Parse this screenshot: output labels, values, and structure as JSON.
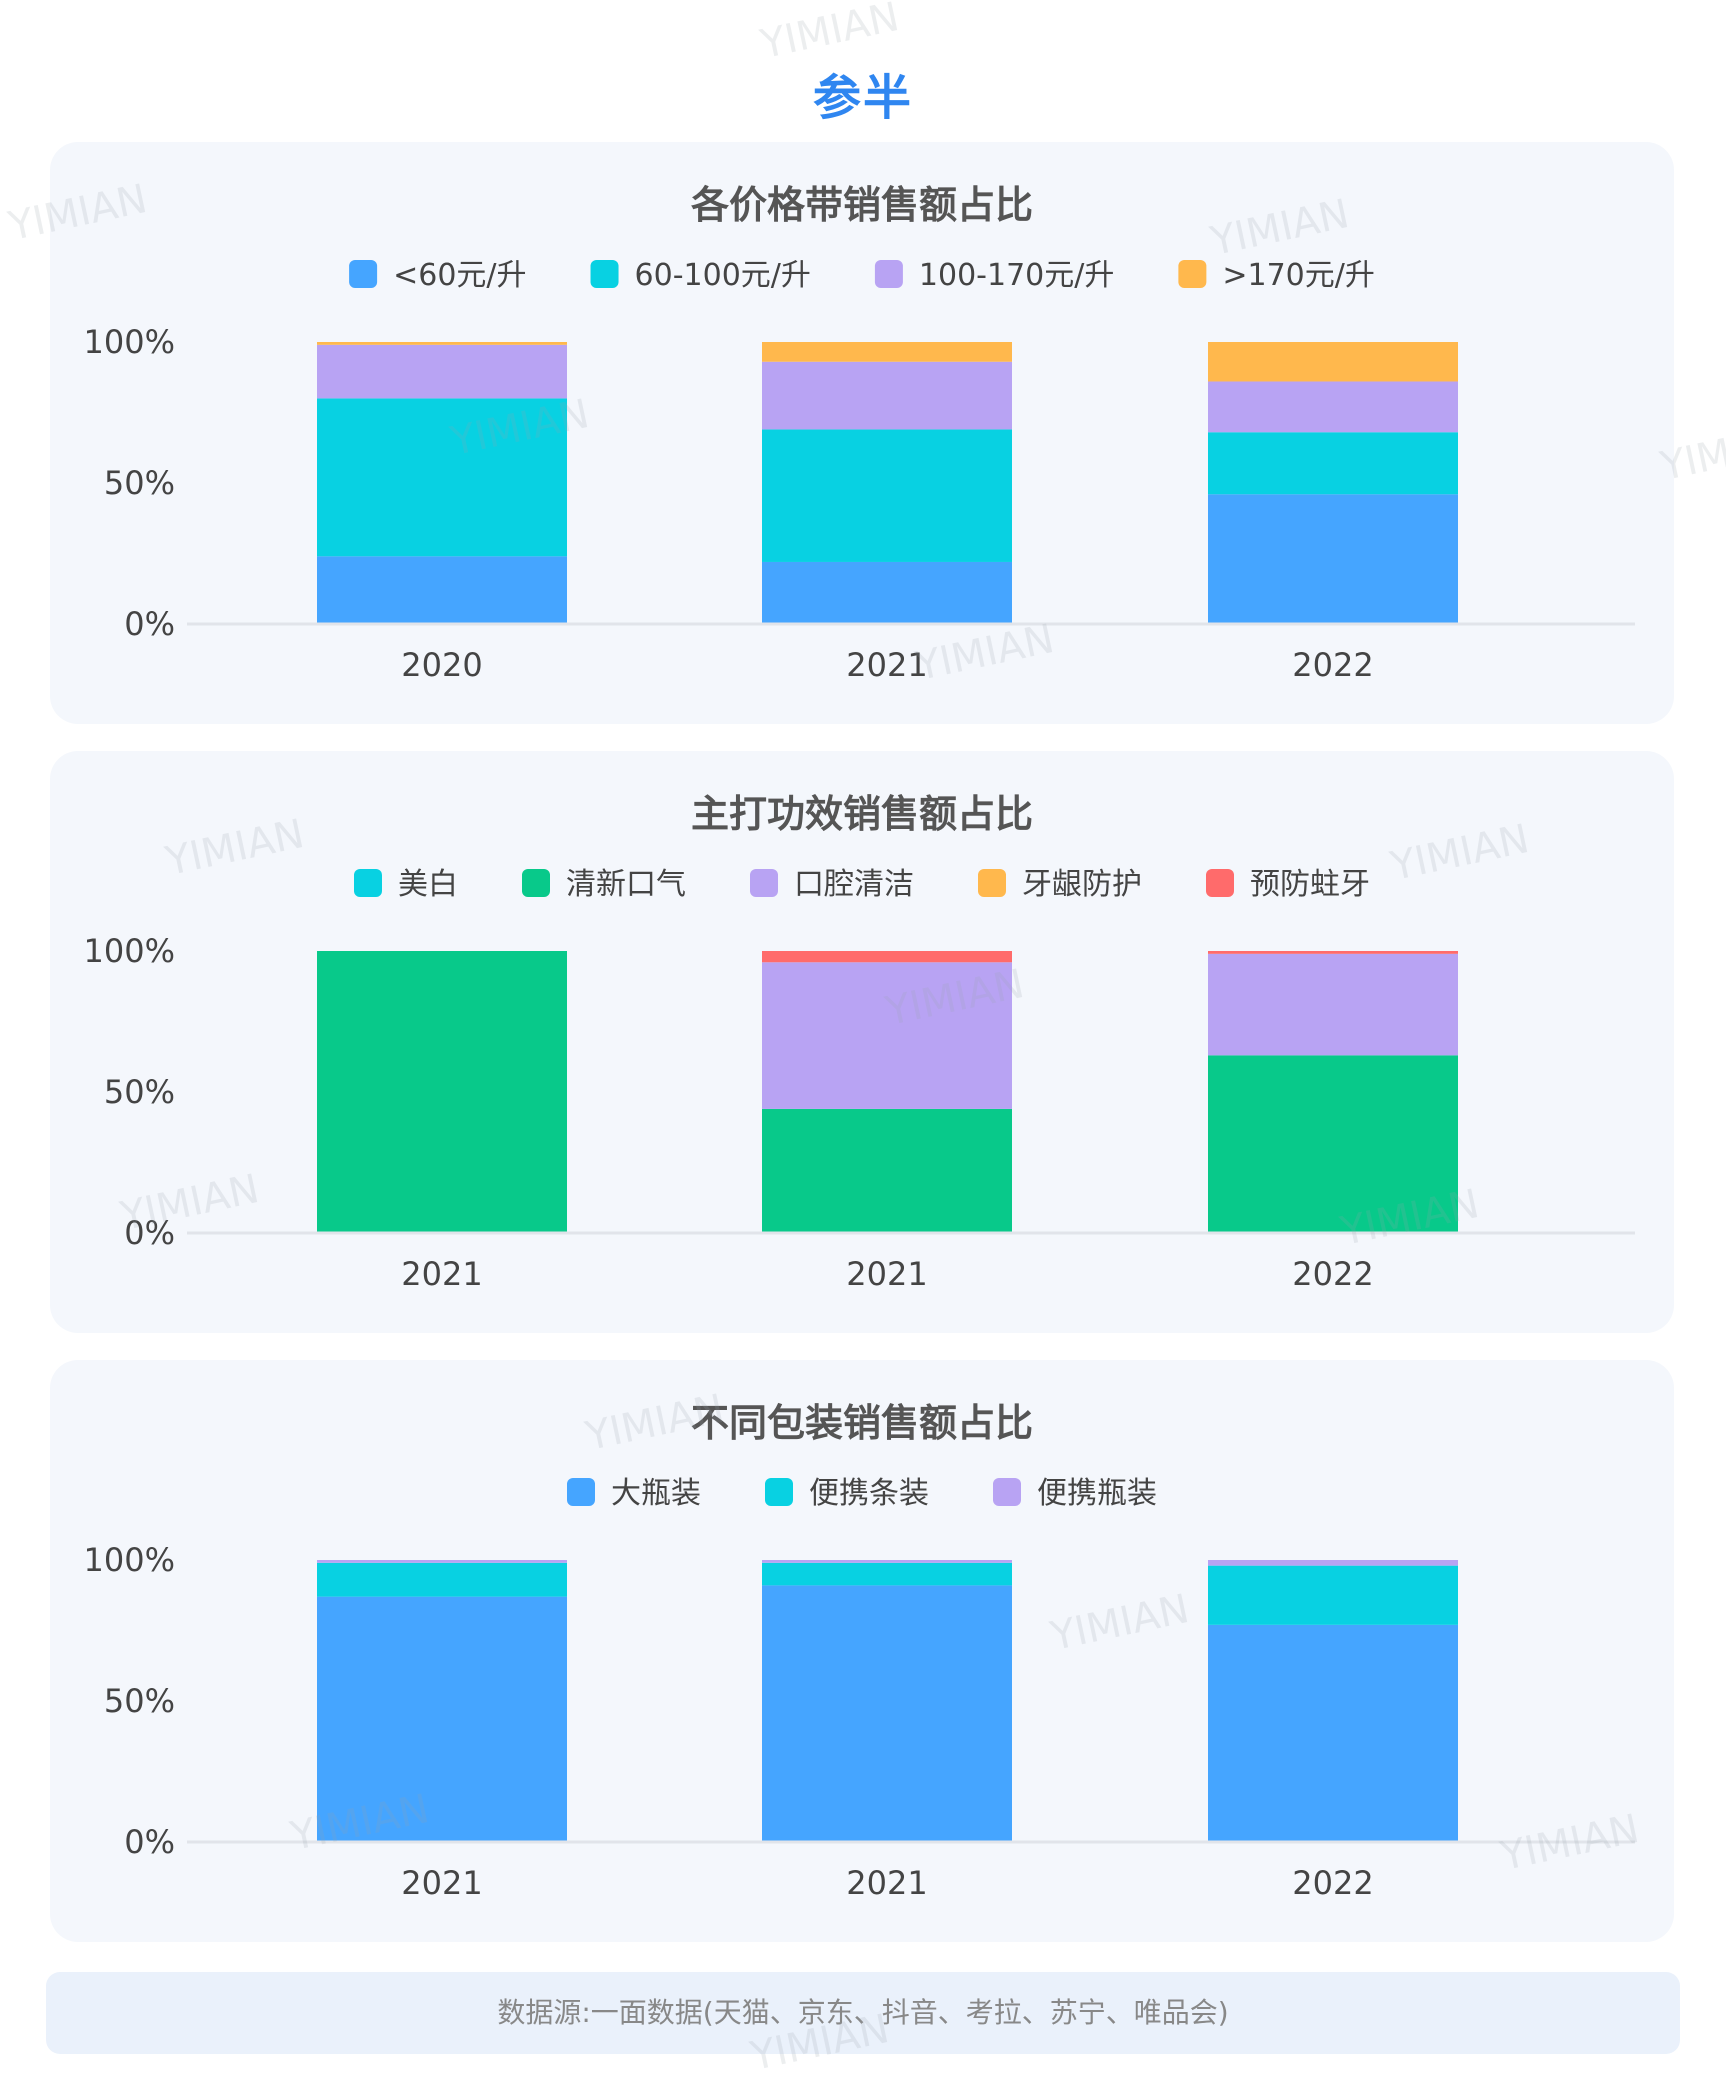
{
  "page_title": "参半",
  "watermark": "YIMIAN",
  "footer": "数据源:一面数据(天猫、京东、抖音、考拉、苏宁、唯品会)",
  "chart_data": [
    {
      "type": "bar",
      "stacked": true,
      "title": "各价格带销售额占比",
      "categories": [
        "2020",
        "2021",
        "2022"
      ],
      "y_ticks": [
        "0%",
        "50%",
        "100%"
      ],
      "ylim": [
        0,
        100
      ],
      "legend_position": "top",
      "series": [
        {
          "name": "<60元/升",
          "color": "#45a5ff",
          "values": [
            24,
            22,
            46
          ]
        },
        {
          "name": "60-100元/升",
          "color": "#08d1e2",
          "values": [
            56,
            47,
            22
          ]
        },
        {
          "name": "100-170元/升",
          "color": "#b8a3f3",
          "values": [
            19,
            24,
            18
          ]
        },
        {
          "name": ">170元/升",
          "color": "#ffb84d",
          "values": [
            1,
            7,
            14
          ]
        }
      ]
    },
    {
      "type": "bar",
      "stacked": true,
      "title": "主打功效销售额占比",
      "categories": [
        "2021",
        "2021",
        "2022"
      ],
      "y_ticks": [
        "0%",
        "50%",
        "100%"
      ],
      "ylim": [
        0,
        100
      ],
      "legend_position": "top",
      "series": [
        {
          "name": "美白",
          "color": "#08d1e2",
          "values": [
            0,
            0,
            0
          ]
        },
        {
          "name": "清新口气",
          "color": "#08c98a",
          "values": [
            100,
            44,
            63
          ]
        },
        {
          "name": "口腔清洁",
          "color": "#b8a3f3",
          "values": [
            0,
            52,
            36
          ]
        },
        {
          "name": "牙龈防护",
          "color": "#ffb84d",
          "values": [
            0,
            0,
            0
          ]
        },
        {
          "name": "预防蛀牙",
          "color": "#ff6b6b",
          "values": [
            0,
            4,
            1
          ]
        }
      ]
    },
    {
      "type": "bar",
      "stacked": true,
      "title": "不同包装销售额占比",
      "categories": [
        "2021",
        "2021",
        "2022"
      ],
      "y_ticks": [
        "0%",
        "50%",
        "100%"
      ],
      "ylim": [
        0,
        100
      ],
      "legend_position": "top",
      "series": [
        {
          "name": "大瓶装",
          "color": "#45a5ff",
          "values": [
            87,
            91,
            77
          ]
        },
        {
          "name": "便携条装",
          "color": "#08d1e2",
          "values": [
            12,
            8,
            21
          ]
        },
        {
          "name": "便携瓶装",
          "color": "#b8a3f3",
          "values": [
            1,
            1,
            2
          ]
        }
      ]
    }
  ]
}
